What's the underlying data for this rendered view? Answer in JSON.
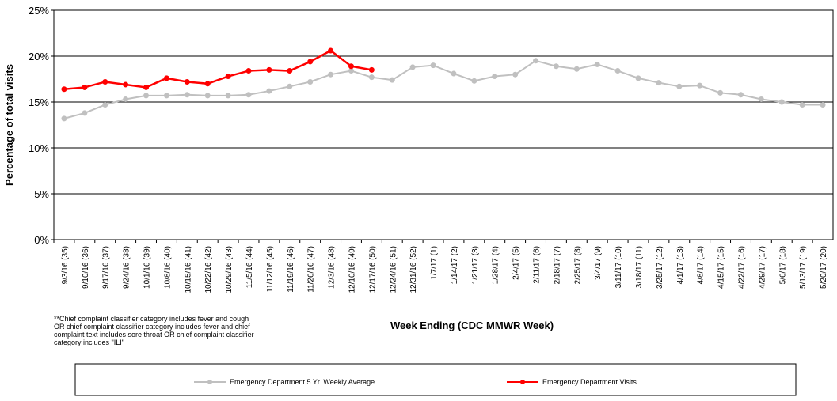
{
  "chart_data": {
    "type": "line",
    "y_label": "Percentage of total visits",
    "x_label": "Week Ending (CDC MMWR Week)",
    "footnote": [
      "**Chief complaint classifier category includes fever and cough",
      "OR chief complaint classifier category includes fever and chief",
      "complaint text includes sore throat OR chief complaint classifier",
      "category includes \"ILI\""
    ],
    "categories": [
      "9/3/16 (35)",
      "9/10/16 (36)",
      "9/17/16 (37)",
      "9/24/16 (38)",
      "10/1/16 (39)",
      "10/8/16 (40)",
      "10/15/16 (41)",
      "10/22/16 (42)",
      "10/29/16 (43)",
      "11/5/16 (44)",
      "11/12/16 (45)",
      "11/19/16 (46)",
      "11/26/16 (47)",
      "12/3/16 (48)",
      "12/10/16 (49)",
      "12/17/16 (50)",
      "12/24/16 (51)",
      "12/31/16 (52)",
      "1/7/17 (1)",
      "1/14/17 (2)",
      "1/21/17 (3)",
      "1/28/17 (4)",
      "2/4/17 (5)",
      "2/11/17 (6)",
      "2/18/17 (7)",
      "2/25/17 (8)",
      "3/4/17 (9)",
      "3/11/17 (10)",
      "3/18/17 (11)",
      "3/25/17 (12)",
      "4/1/17 (13)",
      "4/8/17 (14)",
      "4/15/17 (15)",
      "4/22/17 (16)",
      "4/29/17 (17)",
      "5/6/17 (18)",
      "5/13/17 (19)",
      "5/20/17 (20)"
    ],
    "series": [
      {
        "name": "Emergency Department 5 Yr. Weekly Average",
        "color": "#c0c0c0",
        "values": [
          13.2,
          13.8,
          14.7,
          15.3,
          15.7,
          15.7,
          15.8,
          15.7,
          15.7,
          15.8,
          16.2,
          16.7,
          17.2,
          18.0,
          18.4,
          17.7,
          17.4,
          18.8,
          19.0,
          18.1,
          17.3,
          17.8,
          18.0,
          19.5,
          18.9,
          18.6,
          19.1,
          18.4,
          17.6,
          17.1,
          16.7,
          16.8,
          16.0,
          15.8,
          15.3,
          15.0,
          14.7,
          14.7
        ]
      },
      {
        "name": "Emergency Department Visits",
        "color": "#ff0000",
        "values": [
          16.4,
          16.6,
          17.2,
          16.9,
          16.6,
          17.6,
          17.2,
          17.0,
          17.8,
          18.4,
          18.5,
          18.4,
          19.4,
          20.6,
          18.9,
          18.5,
          null,
          null,
          null,
          null,
          null,
          null,
          null,
          null,
          null,
          null,
          null,
          null,
          null,
          null,
          null,
          null,
          null,
          null,
          null,
          null,
          null,
          null
        ]
      }
    ],
    "ylim": [
      0,
      25
    ],
    "yticks": [
      {
        "value": 0,
        "label": "0%"
      },
      {
        "value": 5,
        "label": "5%"
      },
      {
        "value": 10,
        "label": "10%"
      },
      {
        "value": 15,
        "label": "15%"
      },
      {
        "value": 20,
        "label": "20%"
      },
      {
        "value": 25,
        "label": "25%"
      }
    ],
    "grid": true
  }
}
